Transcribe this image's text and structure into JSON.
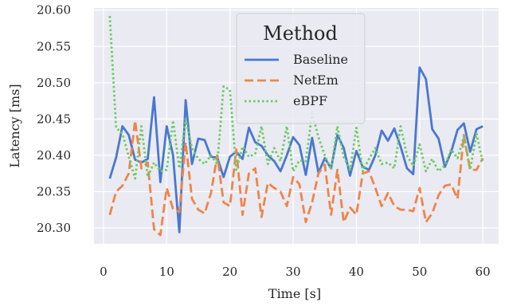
{
  "chart_data": {
    "type": "line",
    "title": "",
    "xlabel": "Time [s]",
    "ylabel": "Latency [ms]",
    "xlim": [
      -1.5,
      62.5
    ],
    "ylim": [
      20.278,
      20.603
    ],
    "xticks": [
      0,
      10,
      20,
      30,
      40,
      50,
      60
    ],
    "yticks": [
      20.3,
      20.35,
      20.4,
      20.45,
      20.5,
      20.55,
      20.6
    ],
    "ytick_labels": [
      "20.30",
      "20.35",
      "20.40",
      "20.45",
      "20.50",
      "20.55",
      "20.60"
    ],
    "grid": true,
    "legend": {
      "title": "Method",
      "placement": "top-center"
    },
    "x": [
      1,
      2,
      3,
      4,
      5,
      6,
      7,
      8,
      9,
      10,
      11,
      12,
      13,
      14,
      15,
      16,
      17,
      18,
      19,
      20,
      21,
      22,
      23,
      24,
      25,
      26,
      27,
      28,
      29,
      30,
      31,
      32,
      33,
      34,
      35,
      36,
      37,
      38,
      39,
      40,
      41,
      42,
      43,
      44,
      45,
      46,
      47,
      48,
      49,
      50,
      51,
      52,
      53,
      54,
      55,
      56,
      57,
      58,
      59,
      60
    ],
    "series": [
      {
        "name": "Baseline",
        "color": "#4878d0",
        "style": "solid",
        "values": [
          20.368,
          20.397,
          20.44,
          20.428,
          20.394,
          20.39,
          20.395,
          20.48,
          20.363,
          20.44,
          20.4,
          20.294,
          20.476,
          20.388,
          20.423,
          20.421,
          20.398,
          20.397,
          20.37,
          20.398,
          20.405,
          20.395,
          20.438,
          20.418,
          20.413,
          20.4,
          20.392,
          20.378,
          20.4,
          20.425,
          20.414,
          20.373,
          20.424,
          20.376,
          20.396,
          20.382,
          20.428,
          20.41,
          20.372,
          20.406,
          20.384,
          20.38,
          20.4,
          20.434,
          20.42,
          20.437,
          20.412,
          20.382,
          20.374,
          20.521,
          20.505,
          20.436,
          20.423,
          20.384,
          20.405,
          20.435,
          20.444,
          20.405,
          20.436,
          20.44
        ]
      },
      {
        "name": "NetEm",
        "color": "#ee854a",
        "style": "dashed",
        "values": [
          20.318,
          20.35,
          20.358,
          20.375,
          20.448,
          20.382,
          20.39,
          20.298,
          20.29,
          20.355,
          20.326,
          20.322,
          20.418,
          20.34,
          20.325,
          20.32,
          20.348,
          20.4,
          20.335,
          20.33,
          20.408,
          20.318,
          20.375,
          20.382,
          20.315,
          20.362,
          20.355,
          20.35,
          20.33,
          20.37,
          20.36,
          20.308,
          20.335,
          20.375,
          20.387,
          20.318,
          20.38,
          20.308,
          20.328,
          20.318,
          20.375,
          20.378,
          20.355,
          20.33,
          20.348,
          20.33,
          20.325,
          20.325,
          20.323,
          20.355,
          20.308,
          20.32,
          20.345,
          20.358,
          20.36,
          20.34,
          20.428,
          20.38,
          20.38,
          20.396
        ]
      },
      {
        "name": "eBPF",
        "color": "#6acc64",
        "style": "dotted",
        "values": [
          20.592,
          20.438,
          20.43,
          20.398,
          20.368,
          20.44,
          20.37,
          20.39,
          20.378,
          20.38,
          20.448,
          20.382,
          20.45,
          20.41,
          20.395,
          20.388,
          20.4,
          20.388,
          20.495,
          20.49,
          20.38,
          20.412,
          20.398,
          20.402,
          20.44,
          20.388,
          20.41,
          20.392,
          20.44,
          20.378,
          20.393,
          20.392,
          20.458,
          20.425,
          20.4,
          20.38,
          20.44,
          20.398,
          20.38,
          20.438,
          20.378,
          20.395,
          20.41,
          20.388,
          20.39,
          20.382,
          20.44,
          20.4,
          20.385,
          20.415,
          20.378,
          20.395,
          20.378,
          20.386,
          20.408,
          20.396,
          20.425,
          20.38,
          20.43,
          20.39
        ]
      }
    ]
  }
}
